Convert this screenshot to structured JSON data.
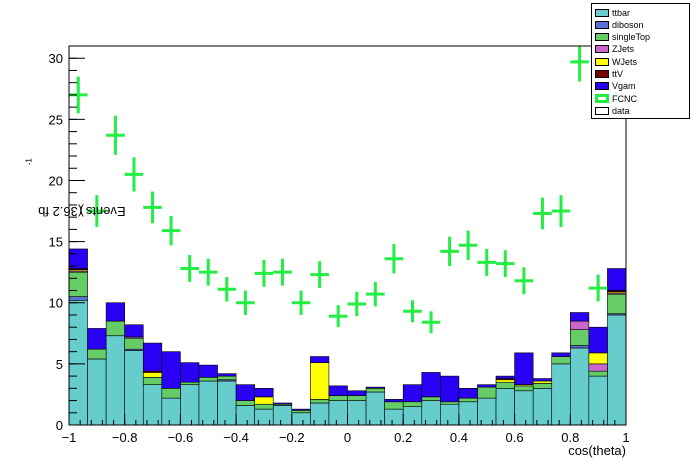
{
  "chart_data": {
    "type": "bar",
    "stacked": true,
    "xlabel": "cos(theta)",
    "ylabel": "Events (36.2 fb",
    "ylabel_sup": "-1",
    "ylabel_end": ")",
    "xlim": [
      -1,
      1
    ],
    "ylim": [
      0,
      31
    ],
    "xticks": [
      -1,
      -0.8,
      -0.6,
      -0.4,
      -0.2,
      0,
      0.2,
      0.4,
      0.6,
      0.8,
      1
    ],
    "xtick_labels": [
      "−1",
      "−0.8",
      "−0.6",
      "−0.4",
      "−0.2",
      "0",
      "0.2",
      "0.4",
      "0.6",
      "0.8",
      "1"
    ],
    "yticks": [
      0,
      5,
      10,
      15,
      20,
      25,
      30
    ],
    "ytick_labels": [
      "0",
      "5",
      "10",
      "15",
      "20",
      "25",
      "30"
    ],
    "bin_edges": [
      -1,
      -0.9333,
      -0.8667,
      -0.8,
      -0.7333,
      -0.6667,
      -0.6,
      -0.5333,
      -0.4667,
      -0.4,
      -0.3333,
      -0.2667,
      -0.2,
      -0.1333,
      -0.0667,
      0,
      0.0667,
      0.1333,
      0.2,
      0.2667,
      0.3333,
      0.4,
      0.4667,
      0.5333,
      0.6,
      0.6667,
      0.7333,
      0.8,
      0.8667,
      0.9333,
      1
    ],
    "series": [
      {
        "name": "ttbar",
        "color": "#66cccc",
        "values": [
          10.2,
          5.4,
          7.3,
          6.1,
          3.3,
          2.2,
          3.3,
          3.6,
          3.6,
          1.6,
          1.3,
          1.6,
          1.0,
          1.8,
          2.0,
          2.0,
          2.7,
          1.3,
          1.5,
          2.0,
          1.7,
          1.9,
          2.2,
          3.0,
          2.8,
          3.0,
          5.0,
          6.3,
          4.0,
          9.0
        ]
      },
      {
        "name": "diboson",
        "color": "#5c71d8",
        "values": [
          0.3,
          0.0,
          0.0,
          0.1,
          0.0,
          0.0,
          0.0,
          0.0,
          0.1,
          0.0,
          0.0,
          0.0,
          0.0,
          0.0,
          0.0,
          0.0,
          0.0,
          0.0,
          0.0,
          0.0,
          0.0,
          0.0,
          0.0,
          0.0,
          0.0,
          0.0,
          0.0,
          0.2,
          0.0,
          0.1
        ]
      },
      {
        "name": "singleTop",
        "color": "#66cc66",
        "values": [
          2.0,
          0.8,
          1.2,
          0.9,
          0.6,
          0.8,
          0.2,
          0.3,
          0.3,
          0.4,
          0.4,
          0.1,
          0.2,
          0.3,
          0.4,
          0.4,
          0.3,
          0.6,
          0.4,
          0.3,
          0.2,
          0.3,
          0.9,
          0.5,
          0.4,
          0.4,
          0.6,
          1.3,
          0.4,
          1.6
        ]
      },
      {
        "name": "ZJets",
        "color": "#cc66cc",
        "values": [
          0.1,
          0.0,
          0.0,
          0.1,
          0.0,
          0.0,
          0.0,
          0.0,
          0.0,
          0.0,
          0.0,
          0.0,
          0.0,
          0.0,
          0.0,
          0.0,
          0.0,
          0.0,
          0.0,
          0.0,
          0.0,
          0.0,
          0.0,
          0.0,
          0.0,
          0.0,
          0.0,
          0.7,
          0.6,
          0.1
        ]
      },
      {
        "name": "WJets",
        "color": "#ffff00",
        "values": [
          0.1,
          0.0,
          0.0,
          0.0,
          0.4,
          0.0,
          0.0,
          0.0,
          0.0,
          0.0,
          0.6,
          0.0,
          0.0,
          3.0,
          0.0,
          0.0,
          0.0,
          0.0,
          0.0,
          0.0,
          0.0,
          0.0,
          0.0,
          0.2,
          0.1,
          0.2,
          0.0,
          0.0,
          0.9,
          0.1
        ]
      },
      {
        "name": "ttV",
        "color": "#7a0000",
        "values": [
          0.1,
          0.0,
          0.0,
          0.0,
          0.1,
          0.0,
          0.0,
          0.0,
          0.0,
          0.0,
          0.0,
          0.0,
          0.0,
          0.0,
          0.0,
          0.0,
          0.0,
          0.0,
          0.0,
          0.0,
          0.0,
          0.0,
          0.0,
          0.1,
          0.0,
          0.0,
          0.0,
          0.0,
          0.0,
          0.1
        ]
      },
      {
        "name": "Vgam",
        "color": "#2a00f5",
        "values": [
          1.6,
          1.7,
          1.5,
          1.0,
          2.3,
          3.0,
          1.6,
          1.0,
          0.2,
          1.3,
          0.7,
          0.1,
          0.1,
          0.5,
          0.8,
          0.4,
          0.1,
          0.2,
          1.4,
          2.0,
          2.1,
          0.8,
          0.2,
          0.2,
          2.6,
          0.2,
          0.3,
          0.7,
          2.1,
          1.8
        ]
      }
    ],
    "fcnc": {
      "name": "FCNC",
      "color": "#22ee44",
      "values": [
        27.0,
        17.5,
        23.7,
        20.5,
        17.8,
        15.9,
        12.8,
        12.5,
        11.1,
        10.0,
        12.4,
        12.5,
        10.0,
        12.3,
        8.9,
        9.9,
        10.7,
        13.6,
        9.3,
        8.4,
        14.2,
        14.7,
        13.3,
        13.2,
        11.8,
        17.3,
        17.5,
        29.7,
        11.2,
        31.5
      ],
      "errors": [
        1.5,
        1.3,
        1.6,
        1.4,
        1.3,
        1.2,
        1.1,
        1.1,
        1.0,
        1.0,
        1.1,
        1.1,
        1.0,
        1.1,
        0.9,
        1.0,
        1.0,
        1.2,
        0.9,
        0.9,
        1.2,
        1.2,
        1.1,
        1.1,
        1.1,
        1.3,
        1.3,
        1.6,
        1.1,
        1.6
      ]
    },
    "legend": {
      "placement": "top-right",
      "entries": [
        {
          "label": "ttbar",
          "color": "#66cccc",
          "style": "fill"
        },
        {
          "label": "diboson",
          "color": "#5c71d8",
          "style": "fill"
        },
        {
          "label": "singleTop",
          "color": "#66cc66",
          "style": "fill"
        },
        {
          "label": "ZJets",
          "color": "#cc66cc",
          "style": "fill"
        },
        {
          "label": "WJets",
          "color": "#ffff00",
          "style": "fill"
        },
        {
          "label": "ttV",
          "color": "#7a0000",
          "style": "fill"
        },
        {
          "label": "Vgam",
          "color": "#2a00f5",
          "style": "fill"
        },
        {
          "label": "FCNC",
          "color": "#22ee44",
          "style": "outline"
        },
        {
          "label": "data",
          "color": "#ffffff",
          "style": "plain"
        }
      ]
    }
  }
}
